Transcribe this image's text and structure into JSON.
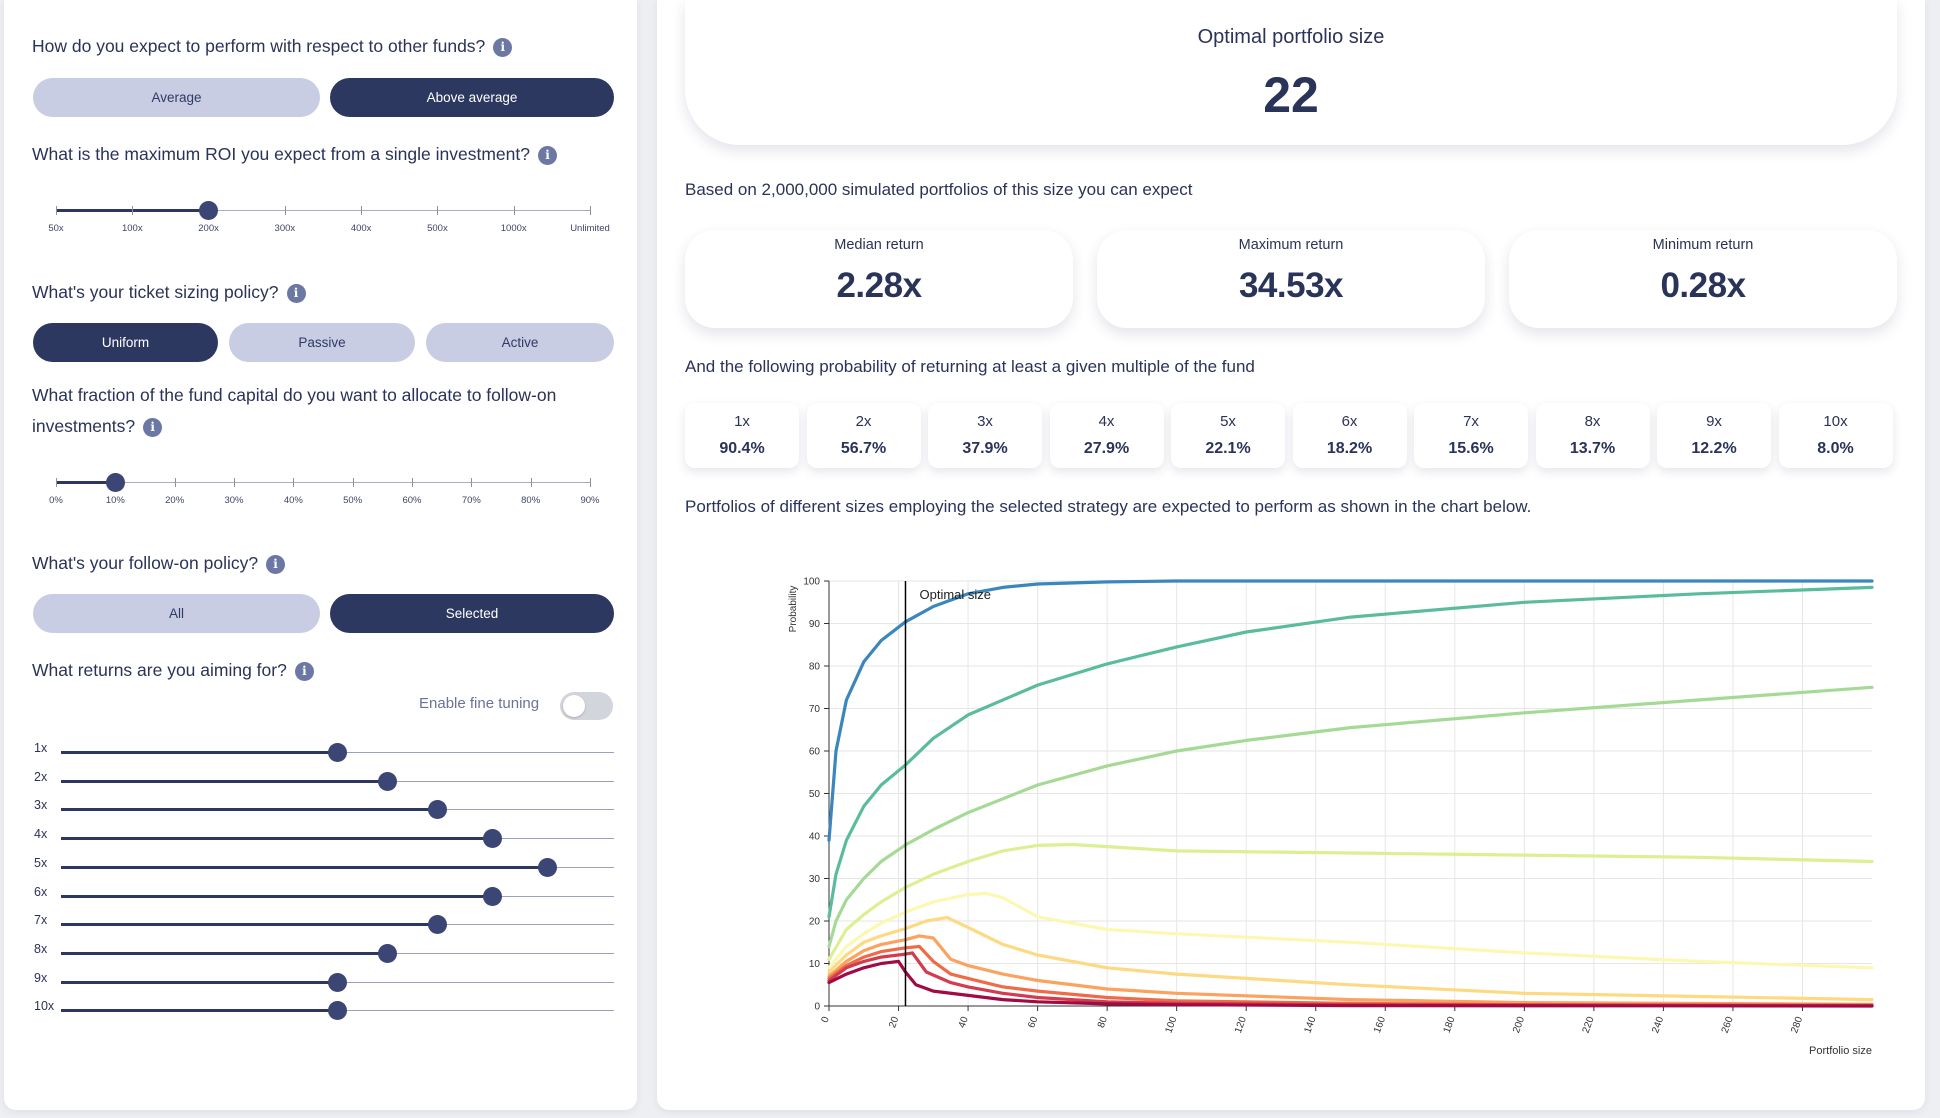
{
  "left": {
    "perf_question": "How do you expect to perform with respect to other funds?",
    "perf_options": [
      "Average",
      "Above average"
    ],
    "roi_question": "What is the maximum ROI you expect from a single investment?",
    "roi_ticks": [
      "50x",
      "100x",
      "200x",
      "300x",
      "400x",
      "500x",
      "1000x",
      "Unlimited"
    ],
    "roi_selected": "200x",
    "ticket_question": "What's your ticket sizing policy?",
    "ticket_options": [
      "Uniform",
      "Passive",
      "Active"
    ],
    "followon_question_line1": "What fraction of the fund capital do you want to allocate to follow-on",
    "followon_question_line2": "investments?",
    "followon_ticks": [
      "0%",
      "10%",
      "20%",
      "30%",
      "40%",
      "50%",
      "60%",
      "70%",
      "80%",
      "90%"
    ],
    "followon_selected": "10%",
    "policy_question": "What's your follow-on policy?",
    "policy_options": [
      "All",
      "Selected"
    ],
    "returns_question": "What returns are you aiming for?",
    "fine_tuning_label": "Enable fine tuning",
    "fine_tuning_on": false,
    "return_targets": [
      {
        "label": "1x",
        "level": 0.5
      },
      {
        "label": "2x",
        "level": 0.59
      },
      {
        "label": "3x",
        "level": 0.68
      },
      {
        "label": "4x",
        "level": 0.78
      },
      {
        "label": "5x",
        "level": 0.88
      },
      {
        "label": "6x",
        "level": 0.78
      },
      {
        "label": "7x",
        "level": 0.68
      },
      {
        "label": "8x",
        "level": 0.59
      },
      {
        "label": "9x",
        "level": 0.5
      },
      {
        "label": "10x",
        "level": 0.5
      }
    ]
  },
  "right": {
    "optimal_title": "Optimal portfolio size",
    "optimal_value": "22",
    "simulated_text": "Based on 2,000,000 simulated portfolios of this size you can expect",
    "median_title": "Median return",
    "median_value": "2.28x",
    "max_title": "Maximum return",
    "max_value": "34.53x",
    "min_title": "Minimum return",
    "min_value": "0.28x",
    "prob_text": "And the following probability of returning at least a given multiple of the fund",
    "probabilities": [
      {
        "label": "1x",
        "value": "90.4%"
      },
      {
        "label": "2x",
        "value": "56.7%"
      },
      {
        "label": "3x",
        "value": "37.9%"
      },
      {
        "label": "4x",
        "value": "27.9%"
      },
      {
        "label": "5x",
        "value": "22.1%"
      },
      {
        "label": "6x",
        "value": "18.2%"
      },
      {
        "label": "7x",
        "value": "15.6%"
      },
      {
        "label": "8x",
        "value": "13.7%"
      },
      {
        "label": "9x",
        "value": "12.2%"
      },
      {
        "label": "10x",
        "value": "8.0%"
      }
    ],
    "chart_intro": "Portfolios of different sizes employing the selected strategy are expected to perform as shown in the chart below."
  },
  "chart_data": {
    "type": "line",
    "xlabel": "Portfolio size",
    "ylabel": "Probability",
    "xlim": [
      0,
      300
    ],
    "ylim": [
      0,
      100
    ],
    "xticks": [
      0,
      20,
      40,
      60,
      80,
      100,
      120,
      140,
      160,
      180,
      200,
      220,
      240,
      260,
      280
    ],
    "yticks": [
      0,
      10,
      20,
      30,
      40,
      50,
      60,
      70,
      80,
      90,
      100
    ],
    "grid": true,
    "annotation": {
      "label": "Optimal size",
      "x": 22
    },
    "series": [
      {
        "color": "#3a86bd",
        "x": [
          0,
          2,
          5,
          10,
          15,
          22,
          30,
          40,
          50,
          60,
          80,
          100,
          150,
          200,
          300
        ],
        "values": [
          39,
          60,
          72,
          81,
          86,
          90.4,
          94,
          97,
          98.5,
          99.3,
          99.8,
          100,
          100,
          100,
          100
        ]
      },
      {
        "color": "#5bbb9e",
        "x": [
          0,
          2,
          5,
          10,
          15,
          22,
          30,
          40,
          60,
          80,
          100,
          120,
          150,
          200,
          250,
          300
        ],
        "values": [
          21,
          31,
          39,
          47,
          52,
          56.7,
          63,
          68.5,
          75.5,
          80.5,
          84.5,
          88,
          91.5,
          95,
          97,
          98.5
        ]
      },
      {
        "color": "#a6d996",
        "x": [
          0,
          2,
          5,
          10,
          15,
          22,
          30,
          40,
          60,
          80,
          100,
          120,
          150,
          200,
          250,
          300
        ],
        "values": [
          14,
          20,
          25,
          30,
          34,
          37.9,
          41.5,
          45.5,
          52,
          56.5,
          60,
          62.5,
          65.5,
          69,
          72,
          75
        ]
      },
      {
        "color": "#dcef93",
        "x": [
          0,
          5,
          10,
          15,
          22,
          30,
          40,
          50,
          60,
          70,
          80,
          100,
          150,
          200,
          250,
          300
        ],
        "values": [
          11,
          18,
          21.5,
          24.5,
          27.9,
          31,
          34,
          36.5,
          37.8,
          38,
          37.5,
          36.5,
          36,
          35.5,
          35,
          34
        ]
      },
      {
        "color": "#fcf8b2",
        "x": [
          0,
          5,
          10,
          15,
          22,
          30,
          40,
          45,
          50,
          60,
          80,
          100,
          150,
          200,
          250,
          300
        ],
        "values": [
          9,
          14,
          17,
          19.5,
          22.1,
          24.5,
          26.2,
          26.5,
          25.5,
          21,
          18,
          17,
          15,
          12.5,
          10.5,
          9
        ]
      },
      {
        "color": "#fdd981",
        "x": [
          0,
          5,
          10,
          15,
          22,
          28,
          34,
          40,
          50,
          60,
          80,
          100,
          150,
          200,
          300
        ],
        "values": [
          8,
          12,
          15,
          16.5,
          18.2,
          20,
          20.8,
          18.5,
          14.5,
          12,
          9,
          7.5,
          5,
          3,
          1.5
        ]
      },
      {
        "color": "#fba35e",
        "x": [
          0,
          5,
          10,
          15,
          22,
          26,
          30,
          35,
          40,
          50,
          60,
          80,
          100,
          150,
          200,
          300
        ],
        "values": [
          7,
          10.5,
          13,
          14.5,
          15.6,
          16.5,
          16,
          11,
          9.5,
          7.5,
          6,
          4,
          3,
          1.5,
          0.8,
          0.4
        ]
      },
      {
        "color": "#ef6b47",
        "x": [
          0,
          5,
          10,
          15,
          22,
          26,
          30,
          35,
          40,
          50,
          60,
          80,
          100,
          150,
          200,
          300
        ],
        "values": [
          6.5,
          9.5,
          11.5,
          12.8,
          13.7,
          14,
          10.5,
          7.5,
          6.5,
          4.5,
          3.5,
          2,
          1.2,
          0.6,
          0.3,
          0.2
        ]
      },
      {
        "color": "#d23c4e",
        "x": [
          0,
          5,
          10,
          15,
          22,
          24,
          28,
          35,
          40,
          50,
          60,
          80,
          100,
          150,
          300
        ],
        "values": [
          6,
          9,
          10.5,
          11.5,
          12.2,
          12.5,
          8,
          5.5,
          4.5,
          3,
          2,
          1,
          0.6,
          0.3,
          0.1
        ]
      },
      {
        "color": "#a10a42",
        "x": [
          0,
          5,
          10,
          15,
          20,
          22,
          25,
          30,
          40,
          50,
          60,
          80,
          100,
          150,
          300
        ],
        "values": [
          5.5,
          7.5,
          9,
          10,
          10.5,
          8,
          5,
          3.5,
          2.5,
          1.5,
          1,
          0.5,
          0.3,
          0.1,
          0
        ]
      }
    ]
  }
}
